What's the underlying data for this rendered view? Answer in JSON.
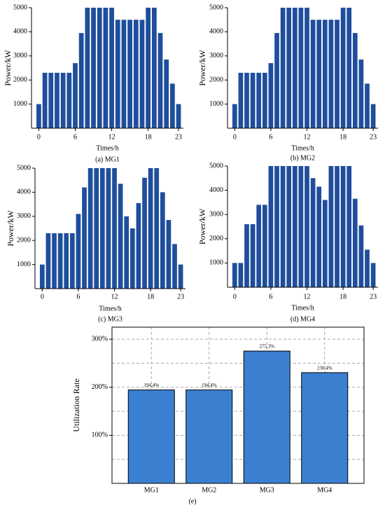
{
  "chart_data": [
    {
      "type": "bar",
      "caption": "(a) MG1",
      "xlabel": "Times/h",
      "ylabel": "Power/kW",
      "color": "#1f4e9c",
      "x": [
        0,
        1,
        2,
        3,
        4,
        5,
        6,
        7,
        8,
        9,
        10,
        11,
        12,
        13,
        14,
        15,
        16,
        17,
        18,
        19,
        20,
        21,
        22,
        23
      ],
      "values": [
        1000,
        2300,
        2300,
        2300,
        2300,
        2300,
        2700,
        3950,
        5000,
        5000,
        5000,
        5000,
        5000,
        4500,
        4500,
        4500,
        4500,
        4500,
        5000,
        5000,
        3950,
        2850,
        1850,
        1000
      ],
      "xlim": [
        -1.2,
        23.8
      ],
      "xticks": [
        0,
        6,
        12,
        18,
        23
      ],
      "ylim": [
        0,
        5000
      ],
      "yticks": [
        1000,
        2000,
        3000,
        4000,
        5000
      ]
    },
    {
      "type": "bar",
      "caption": "(b) MG2",
      "xlabel": "Times/h",
      "ylabel": "Power/kW",
      "color": "#1f4e9c",
      "x": [
        0,
        1,
        2,
        3,
        4,
        5,
        6,
        7,
        8,
        9,
        10,
        11,
        12,
        13,
        14,
        15,
        16,
        17,
        18,
        19,
        20,
        21,
        22,
        23
      ],
      "values": [
        1000,
        2300,
        2300,
        2300,
        2300,
        2300,
        2700,
        3950,
        5000,
        5000,
        5000,
        5000,
        5000,
        4500,
        4500,
        4500,
        4500,
        4500,
        5000,
        5000,
        3950,
        2850,
        1850,
        1000
      ],
      "xlim": [
        -1.2,
        23.8
      ],
      "xticks": [
        0,
        6,
        12,
        18,
        23
      ],
      "ylim": [
        0,
        5000
      ],
      "yticks": [
        1000,
        2000,
        3000,
        4000,
        5000
      ]
    },
    {
      "type": "bar",
      "caption": "(c) MG3",
      "xlabel": "Times/h",
      "ylabel": "Power/kW",
      "color": "#1f4e9c",
      "x": [
        0,
        1,
        2,
        3,
        4,
        5,
        6,
        7,
        8,
        9,
        10,
        11,
        12,
        13,
        14,
        15,
        16,
        17,
        18,
        19,
        20,
        21,
        22,
        23
      ],
      "values": [
        1000,
        2300,
        2300,
        2300,
        2300,
        2300,
        3100,
        4200,
        5000,
        5000,
        5000,
        5000,
        5000,
        4350,
        3000,
        2500,
        3550,
        4600,
        5000,
        5000,
        4000,
        2850,
        1850,
        1000
      ],
      "xlim": [
        -1.2,
        23.8
      ],
      "xticks": [
        0,
        6,
        12,
        18,
        23
      ],
      "ylim": [
        0,
        5000
      ],
      "yticks": [
        1000,
        2000,
        3000,
        4000,
        5000
      ]
    },
    {
      "type": "bar",
      "caption": "(d) MG4",
      "xlabel": "Times/h",
      "ylabel": "Power/kW",
      "color": "#1f4e9c",
      "x": [
        0,
        1,
        2,
        3,
        4,
        5,
        6,
        7,
        8,
        9,
        10,
        11,
        12,
        13,
        14,
        15,
        16,
        17,
        18,
        19,
        20,
        21,
        22,
        23
      ],
      "values": [
        1000,
        1000,
        2600,
        2600,
        3400,
        3400,
        5000,
        5000,
        5000,
        5000,
        5000,
        5000,
        5000,
        4500,
        4150,
        3600,
        5000,
        5000,
        5000,
        5000,
        3650,
        2550,
        1550,
        1000
      ],
      "xlim": [
        -1.2,
        23.8
      ],
      "xticks": [
        0,
        6,
        12,
        18,
        23
      ],
      "ylim": [
        0,
        5000
      ],
      "yticks": [
        1000,
        2000,
        3000,
        4000,
        5000
      ]
    },
    {
      "type": "bar",
      "caption": "(e)",
      "ylabel": "Utilization Rate",
      "color": "#3a7fd0",
      "categories": [
        "MG1",
        "MG2",
        "MG3",
        "MG4"
      ],
      "values": [
        194.4,
        194.4,
        275.3,
        230.4
      ],
      "value_labels": [
        "194.4%",
        "194.4%",
        "275.3%",
        "230.4%"
      ],
      "ylim": [
        0,
        325
      ],
      "yticks": [
        {
          "value": 100,
          "label": "100%"
        },
        {
          "value": 200,
          "label": "200%"
        },
        {
          "value": 300,
          "label": "300%"
        }
      ],
      "minor_yticks": [
        50,
        150,
        250
      ],
      "grid": true,
      "frame": true
    }
  ]
}
